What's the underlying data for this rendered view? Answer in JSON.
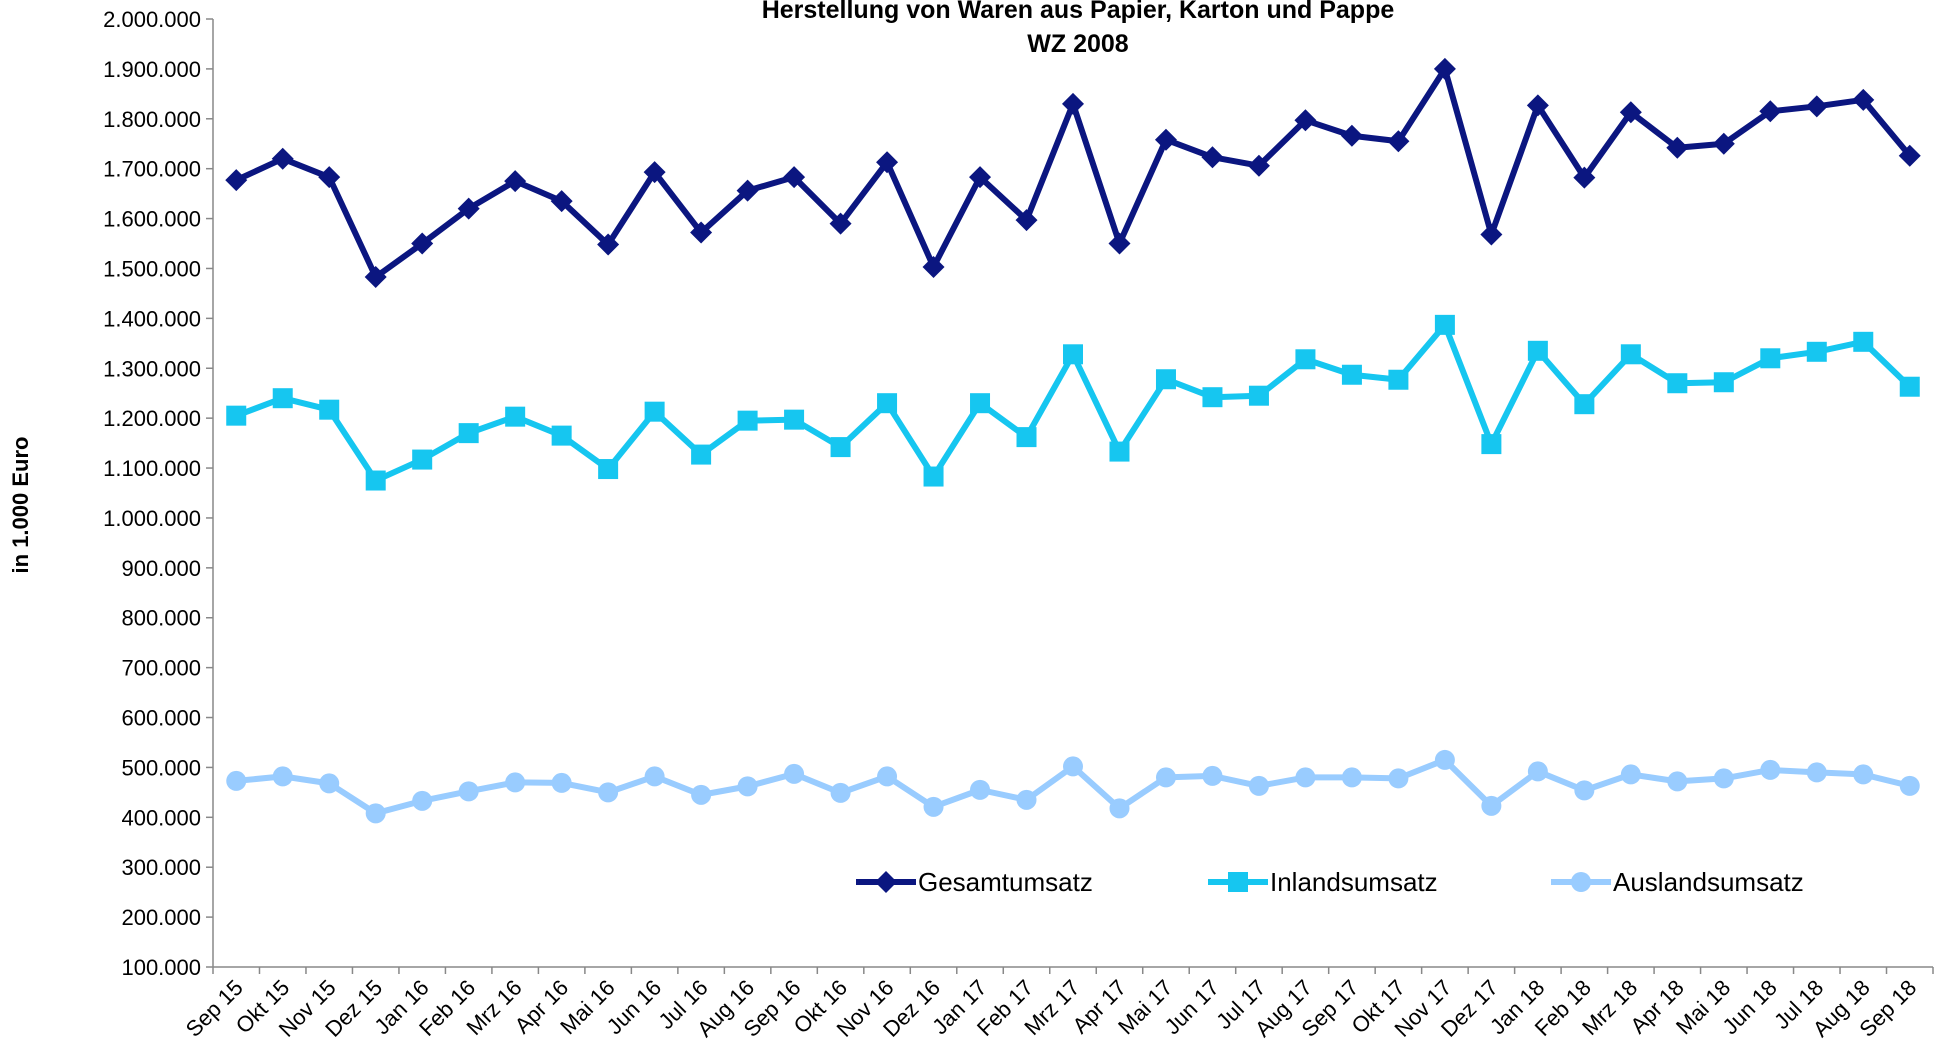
{
  "chart_data": {
    "type": "line",
    "title": [
      "Herstellung von Waren aus Papier, Karton und Pappe",
      "WZ 2008"
    ],
    "y_label": "in 1.000 Euro",
    "categories": [
      "Sep 15",
      "Okt 15",
      "Nov 15",
      "Dez 15",
      "Jan 16",
      "Feb 16",
      "Mrz 16",
      "Apr 16",
      "Mai 16",
      "Jun 16",
      "Jul 16",
      "Aug 16",
      "Sep 16",
      "Okt 16",
      "Nov 16",
      "Dez 16",
      "Jan 17",
      "Feb 17",
      "Mrz 17",
      "Apr 17",
      "Mai 17",
      "Jun 17",
      "Jul 17",
      "Aug 17",
      "Sep 17",
      "Okt 17",
      "Nov 17",
      "Dez 17",
      "Jan 18",
      "Feb 18",
      "Mrz 18",
      "Apr 18",
      "Mai 18",
      "Jun 18",
      "Jul 18",
      "Aug 18",
      "Sep 18"
    ],
    "series": [
      {
        "name": "Gesamtumsatz",
        "color": "#0b1680",
        "marker": "diamond",
        "values": [
          1677000,
          1720000,
          1683000,
          1483000,
          1550000,
          1620000,
          1675000,
          1635000,
          1548000,
          1693000,
          1572000,
          1656000,
          1683000,
          1590000,
          1713000,
          1503000,
          1683000,
          1597000,
          1830000,
          1550000,
          1758000,
          1723000,
          1706000,
          1797000,
          1766000,
          1755000,
          1900000,
          1568000,
          1827000,
          1682000,
          1813000,
          1742000,
          1750000,
          1815000,
          1825000,
          1838000,
          1726000
        ]
      },
      {
        "name": "Inlandsumsatz",
        "color": "#16c6f0",
        "marker": "square",
        "values": [
          1205000,
          1240000,
          1217000,
          1075000,
          1117000,
          1170000,
          1203000,
          1165000,
          1098000,
          1213000,
          1127000,
          1195000,
          1197000,
          1142000,
          1230000,
          1083000,
          1230000,
          1162000,
          1328000,
          1133000,
          1278000,
          1242000,
          1245000,
          1318000,
          1287000,
          1277000,
          1387000,
          1148000,
          1335000,
          1228000,
          1328000,
          1270000,
          1272000,
          1320000,
          1333000,
          1353000,
          1263000
        ]
      },
      {
        "name": "Auslandsumsatz",
        "color": "#99ccff",
        "marker": "circle",
        "values": [
          473000,
          482000,
          468000,
          408000,
          433000,
          452000,
          470000,
          469000,
          450000,
          482000,
          445000,
          462000,
          487000,
          449000,
          482000,
          421000,
          455000,
          435000,
          502000,
          418000,
          480000,
          483000,
          463000,
          480000,
          480000,
          478000,
          515000,
          423000,
          492000,
          454000,
          486000,
          472000,
          478000,
          495000,
          490000,
          486000,
          463000
        ]
      }
    ],
    "ylim": [
      100000,
      2000000
    ],
    "yticks": [
      {
        "value": 100000,
        "label": "100.000"
      },
      {
        "value": 200000,
        "label": "200.000"
      },
      {
        "value": 300000,
        "label": "300.000"
      },
      {
        "value": 400000,
        "label": "400.000"
      },
      {
        "value": 500000,
        "label": "500.000"
      },
      {
        "value": 600000,
        "label": "600.000"
      },
      {
        "value": 700000,
        "label": "700.000"
      },
      {
        "value": 800000,
        "label": "800.000"
      },
      {
        "value": 900000,
        "label": "900.000"
      },
      {
        "value": 1000000,
        "label": "1.000.000"
      },
      {
        "value": 1100000,
        "label": "1.100.000"
      },
      {
        "value": 1200000,
        "label": "1.200.000"
      },
      {
        "value": 1300000,
        "label": "1.300.000"
      },
      {
        "value": 1400000,
        "label": "1.400.000"
      },
      {
        "value": 1500000,
        "label": "1.500.000"
      },
      {
        "value": 1600000,
        "label": "1.600.000"
      },
      {
        "value": 1700000,
        "label": "1.700.000"
      },
      {
        "value": 1800000,
        "label": "1.800.000"
      },
      {
        "value": 1900000,
        "label": "1.900.000"
      },
      {
        "value": 2000000,
        "label": "2.000.000"
      }
    ],
    "grid": false,
    "legend": "bottom-right"
  }
}
